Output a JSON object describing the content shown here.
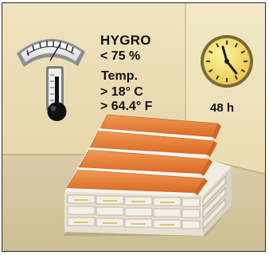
{
  "conditions": {
    "humidity_label": "HYGRO",
    "humidity_value": "< 75 %",
    "temperature_label": "Temp.",
    "temperature_celsius": "> 18° C",
    "temperature_fahrenheit": "> 64.4° F",
    "duration": "48 h"
  },
  "colors": {
    "wall_left": "#efe3bf",
    "wall_right": "#f3e9c8",
    "floor": "#d8cba0",
    "plank_orange": "#e07a35",
    "plank_white": "#f7f5ef",
    "clock_face": "#f3dc7a"
  },
  "icons": {
    "gauge": "hygrometer-icon",
    "thermometer": "thermometer-icon",
    "clock": "clock-icon",
    "stack": "stacked-flooring-icon"
  }
}
